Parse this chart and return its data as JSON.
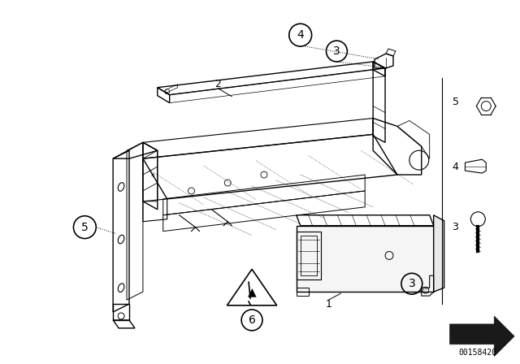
{
  "background_color": "#ffffff",
  "fig_width": 6.4,
  "fig_height": 4.48,
  "dpi": 100,
  "part_number_text": "00158420",
  "line_color": "#000000",
  "text_color": "#000000"
}
